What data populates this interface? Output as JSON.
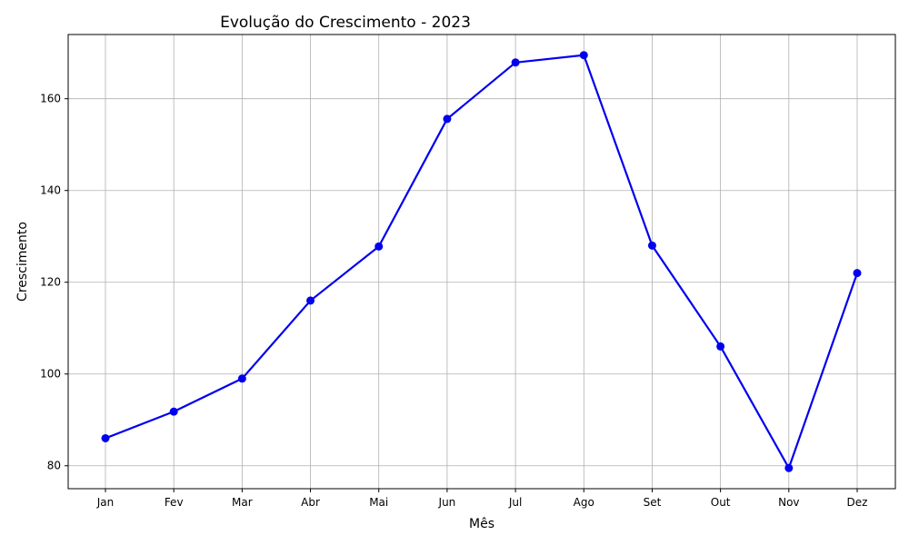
{
  "chart_data": {
    "type": "line",
    "title": "Evolução do Crescimento - 2023",
    "xlabel": "Mês",
    "ylabel": "Crescimento",
    "categories": [
      "Jan",
      "Fev",
      "Mar",
      "Abr",
      "Mai",
      "Jun",
      "Jul",
      "Ago",
      "Set",
      "Out",
      "Nov",
      "Dez"
    ],
    "series": [
      {
        "values": [
          86,
          91.8,
          99,
          116,
          127.8,
          155.6,
          167.9,
          169.5,
          128,
          106,
          79.5,
          122
        ],
        "color": "#0000ee"
      }
    ],
    "ylim": [
      75,
      174
    ],
    "yticks": [
      80,
      100,
      120,
      140,
      160
    ],
    "grid": true,
    "markers": true
  }
}
